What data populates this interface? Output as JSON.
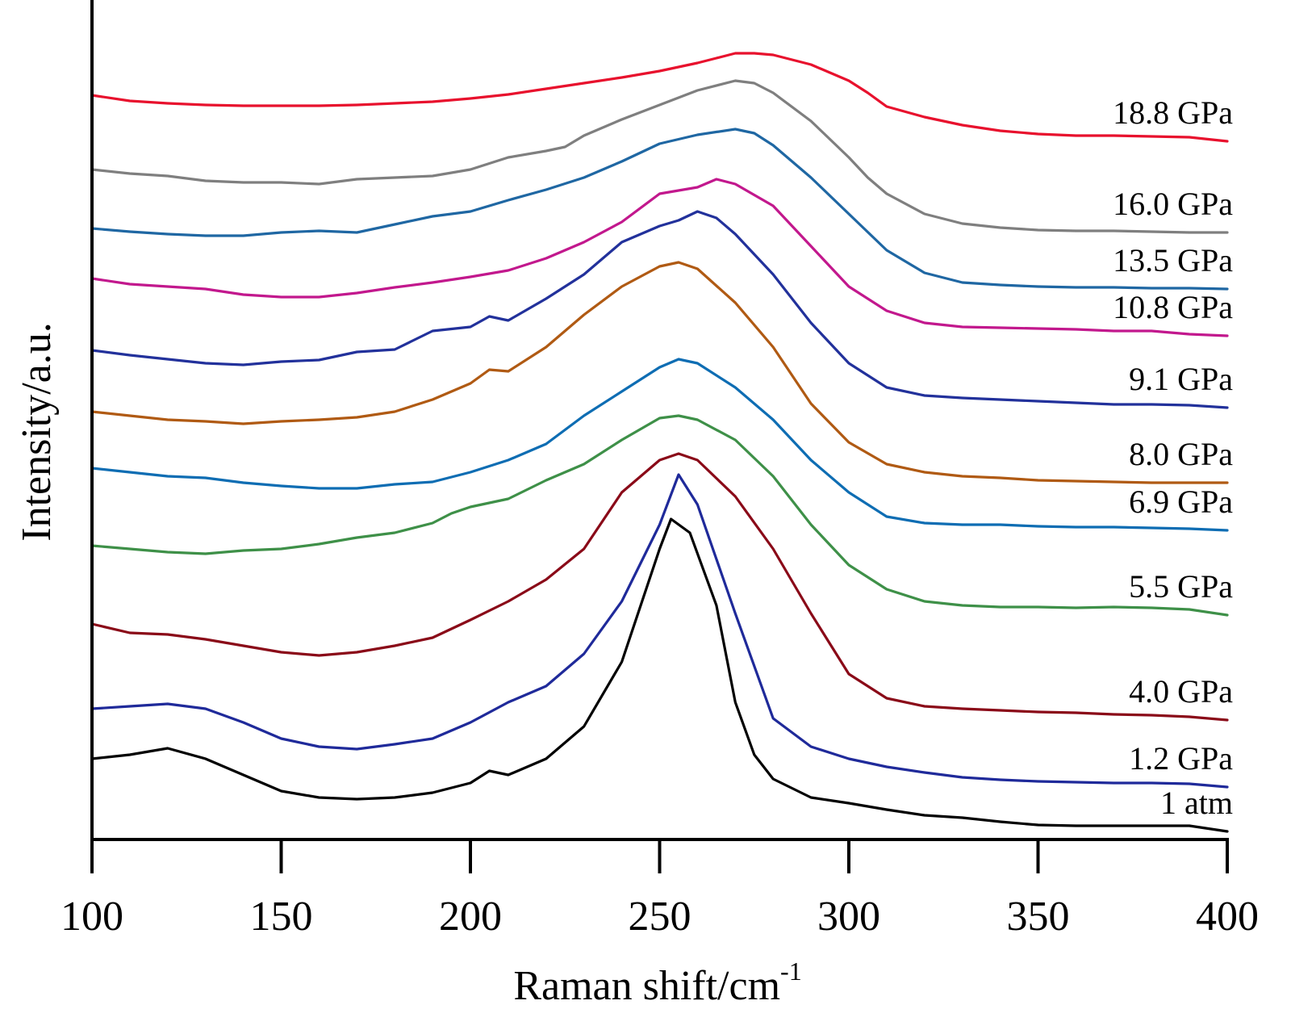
{
  "chart_data": {
    "type": "line",
    "title": "",
    "xlabel": "Raman shift/cm",
    "xlabel_superscript": "-1",
    "ylabel": "Intensity/a.u.",
    "xlim": [
      100,
      400
    ],
    "ylim": [
      0,
      1040
    ],
    "grid": false,
    "legend": "inline labels at right end of each curve",
    "x_ticks": [
      100,
      150,
      200,
      250,
      300,
      350,
      400
    ],
    "x_tick_labels": [
      "100",
      "150",
      "200",
      "250",
      "300",
      "350",
      "400"
    ],
    "series": [
      {
        "name": "18.8 GPa",
        "color": "#e8112d",
        "x": [
          100,
          110,
          120,
          130,
          140,
          150,
          160,
          170,
          180,
          190,
          200,
          210,
          220,
          230,
          240,
          250,
          260,
          265,
          270,
          275,
          280,
          290,
          300,
          305,
          310,
          320,
          330,
          340,
          350,
          360,
          370,
          380,
          390,
          400
        ],
        "y": [
          922,
          915,
          912,
          910,
          909,
          909,
          909,
          910,
          912,
          914,
          918,
          923,
          930,
          937,
          944,
          952,
          962,
          968,
          974,
          974,
          972,
          960,
          940,
          925,
          908,
          895,
          885,
          878,
          874,
          872,
          872,
          871,
          870,
          865
        ]
      },
      {
        "name": "16.0 GPa",
        "color": "#7f7f7f",
        "x": [
          100,
          110,
          120,
          130,
          140,
          150,
          160,
          170,
          180,
          190,
          200,
          210,
          220,
          225,
          230,
          240,
          250,
          260,
          270,
          275,
          280,
          290,
          300,
          305,
          310,
          320,
          330,
          340,
          350,
          360,
          370,
          380,
          390,
          400
        ],
        "y": [
          830,
          825,
          822,
          816,
          814,
          814,
          812,
          818,
          820,
          822,
          830,
          845,
          853,
          858,
          872,
          892,
          910,
          928,
          940,
          937,
          925,
          890,
          845,
          820,
          800,
          775,
          763,
          758,
          755,
          754,
          754,
          753,
          752,
          752
        ]
      },
      {
        "name": "13.5 GPa",
        "color": "#1f67a3",
        "x": [
          100,
          110,
          120,
          130,
          140,
          150,
          160,
          170,
          180,
          190,
          200,
          210,
          220,
          230,
          240,
          250,
          260,
          270,
          275,
          280,
          290,
          300,
          310,
          320,
          330,
          340,
          350,
          360,
          370,
          380,
          390,
          400
        ],
        "y": [
          757,
          753,
          750,
          748,
          748,
          752,
          754,
          752,
          762,
          772,
          778,
          792,
          805,
          820,
          840,
          862,
          873,
          880,
          875,
          860,
          820,
          775,
          730,
          702,
          690,
          687,
          685,
          684,
          684,
          683,
          683,
          682
        ]
      },
      {
        "name": "10.8 GPa",
        "color": "#c2188d",
        "x": [
          100,
          110,
          120,
          130,
          140,
          150,
          160,
          170,
          180,
          190,
          200,
          210,
          220,
          230,
          240,
          250,
          260,
          265,
          270,
          280,
          290,
          300,
          310,
          320,
          330,
          340,
          350,
          360,
          370,
          380,
          390,
          400
        ],
        "y": [
          695,
          688,
          685,
          682,
          675,
          672,
          672,
          677,
          684,
          690,
          697,
          705,
          720,
          740,
          765,
          800,
          808,
          818,
          812,
          785,
          735,
          685,
          655,
          640,
          635,
          634,
          633,
          632,
          630,
          630,
          626,
          624
        ]
      },
      {
        "name": "9.1 GPa",
        "color": "#22319b",
        "x": [
          100,
          110,
          120,
          130,
          140,
          150,
          160,
          170,
          180,
          190,
          200,
          205,
          210,
          220,
          230,
          240,
          250,
          255,
          260,
          265,
          270,
          280,
          290,
          300,
          310,
          320,
          330,
          340,
          350,
          360,
          370,
          380,
          390,
          400
        ],
        "y": [
          606,
          600,
          595,
          590,
          588,
          592,
          594,
          604,
          607,
          630,
          635,
          648,
          643,
          670,
          700,
          740,
          760,
          767,
          778,
          770,
          750,
          700,
          640,
          590,
          560,
          550,
          547,
          545,
          543,
          541,
          539,
          539,
          538,
          535
        ]
      },
      {
        "name": "8.0 GPa",
        "color": "#b05a13",
        "x": [
          100,
          110,
          120,
          130,
          140,
          150,
          160,
          170,
          180,
          190,
          200,
          205,
          210,
          220,
          230,
          240,
          250,
          255,
          260,
          270,
          280,
          290,
          300,
          310,
          320,
          330,
          340,
          350,
          360,
          370,
          380,
          390,
          400
        ],
        "y": [
          530,
          525,
          520,
          518,
          515,
          518,
          520,
          523,
          530,
          545,
          565,
          582,
          580,
          610,
          650,
          685,
          710,
          715,
          707,
          665,
          610,
          540,
          492,
          465,
          455,
          450,
          448,
          445,
          444,
          443,
          442,
          442,
          442
        ]
      },
      {
        "name": "6.9 GPa",
        "color": "#0e6db3",
        "x": [
          100,
          110,
          120,
          130,
          140,
          150,
          160,
          170,
          180,
          190,
          200,
          210,
          220,
          230,
          240,
          250,
          255,
          260,
          270,
          280,
          290,
          300,
          310,
          320,
          330,
          340,
          350,
          360,
          370,
          380,
          390,
          400
        ],
        "y": [
          460,
          455,
          450,
          448,
          442,
          438,
          435,
          435,
          440,
          443,
          455,
          470,
          490,
          525,
          555,
          585,
          595,
          590,
          560,
          520,
          470,
          430,
          400,
          392,
          390,
          390,
          388,
          387,
          387,
          386,
          385,
          383
        ]
      },
      {
        "name": "5.5 GPa",
        "color": "#3e9048",
        "x": [
          100,
          110,
          120,
          130,
          140,
          150,
          160,
          170,
          180,
          190,
          195,
          200,
          210,
          220,
          230,
          240,
          250,
          255,
          260,
          270,
          280,
          290,
          300,
          310,
          320,
          330,
          340,
          350,
          360,
          370,
          380,
          390,
          400
        ],
        "y": [
          364,
          360,
          356,
          354,
          358,
          360,
          366,
          374,
          380,
          392,
          404,
          412,
          422,
          445,
          465,
          495,
          522,
          525,
          520,
          495,
          450,
          390,
          340,
          310,
          295,
          290,
          288,
          288,
          287,
          288,
          287,
          285,
          278
        ]
      },
      {
        "name": "4.0 GPa",
        "color": "#8a0a18",
        "x": [
          100,
          110,
          120,
          130,
          140,
          150,
          160,
          170,
          180,
          190,
          200,
          210,
          220,
          230,
          240,
          250,
          255,
          260,
          270,
          280,
          290,
          300,
          310,
          320,
          330,
          340,
          350,
          360,
          370,
          380,
          390,
          400
        ],
        "y": [
          267,
          256,
          254,
          248,
          240,
          232,
          228,
          232,
          240,
          250,
          272,
          295,
          322,
          360,
          430,
          470,
          478,
          470,
          425,
          360,
          280,
          205,
          175,
          165,
          162,
          160,
          158,
          157,
          155,
          154,
          152,
          148
        ]
      },
      {
        "name": "1.2 GPa",
        "color": "#1f2a9a",
        "x": [
          100,
          110,
          120,
          130,
          140,
          150,
          160,
          170,
          180,
          190,
          200,
          210,
          220,
          230,
          240,
          250,
          255,
          260,
          270,
          280,
          290,
          300,
          310,
          320,
          330,
          340,
          350,
          360,
          370,
          380,
          390,
          400
        ],
        "y": [
          162,
          165,
          168,
          162,
          145,
          125,
          115,
          112,
          118,
          125,
          145,
          170,
          190,
          230,
          295,
          390,
          452,
          415,
          280,
          150,
          115,
          100,
          90,
          83,
          77,
          74,
          72,
          71,
          70,
          70,
          69,
          65
        ]
      },
      {
        "name": "1 atm",
        "color": "#000000",
        "x": [
          100,
          110,
          120,
          130,
          140,
          150,
          160,
          170,
          180,
          190,
          200,
          205,
          210,
          220,
          230,
          240,
          250,
          253,
          258,
          265,
          270,
          275,
          280,
          290,
          300,
          310,
          320,
          330,
          340,
          350,
          360,
          370,
          380,
          390,
          400
        ],
        "y": [
          100,
          105,
          113,
          100,
          80,
          60,
          52,
          50,
          52,
          58,
          70,
          85,
          80,
          100,
          140,
          220,
          360,
          397,
          380,
          290,
          170,
          105,
          75,
          52,
          45,
          37,
          30,
          27,
          22,
          18,
          17,
          17,
          17,
          17,
          10
        ]
      }
    ]
  }
}
